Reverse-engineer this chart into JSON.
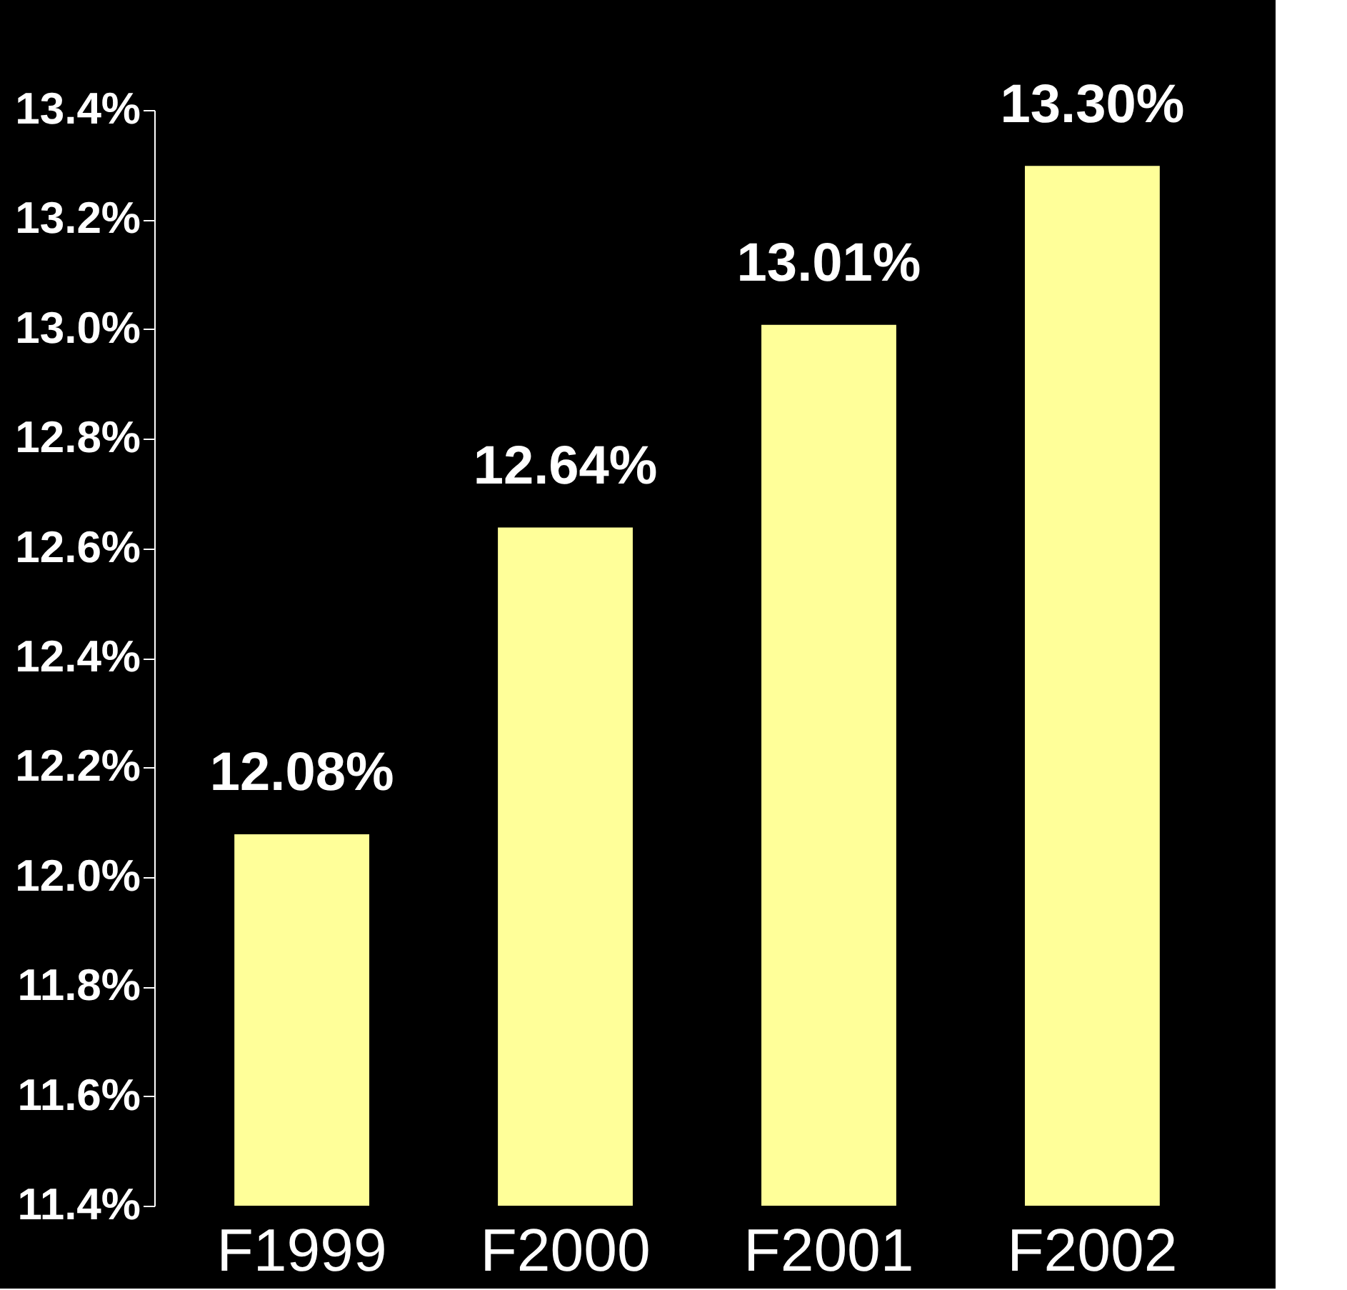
{
  "chart_data": {
    "type": "bar",
    "categories": [
      "F1999",
      "F2000",
      "F2001",
      "F2002"
    ],
    "values": [
      12.08,
      12.64,
      13.01,
      13.3
    ],
    "value_labels": [
      "12.08%",
      "12.64%",
      "13.01%",
      "13.30%"
    ],
    "color": "#ffff99",
    "ylim": [
      11.4,
      13.4
    ],
    "yticks": [
      {
        "value": 11.4,
        "label": "11.4%"
      },
      {
        "value": 11.6,
        "label": "11.6%"
      },
      {
        "value": 11.8,
        "label": "11.8%"
      },
      {
        "value": 12.0,
        "label": "12.0%"
      },
      {
        "value": 12.2,
        "label": "12.2%"
      },
      {
        "value": 12.4,
        "label": "12.4%"
      },
      {
        "value": 12.6,
        "label": "12.6%"
      },
      {
        "value": 12.8,
        "label": "12.8%"
      },
      {
        "value": 13.0,
        "label": "13.0%"
      },
      {
        "value": 13.2,
        "label": "13.2%"
      },
      {
        "value": 13.4,
        "label": "13.4%"
      }
    ],
    "grid": false
  }
}
